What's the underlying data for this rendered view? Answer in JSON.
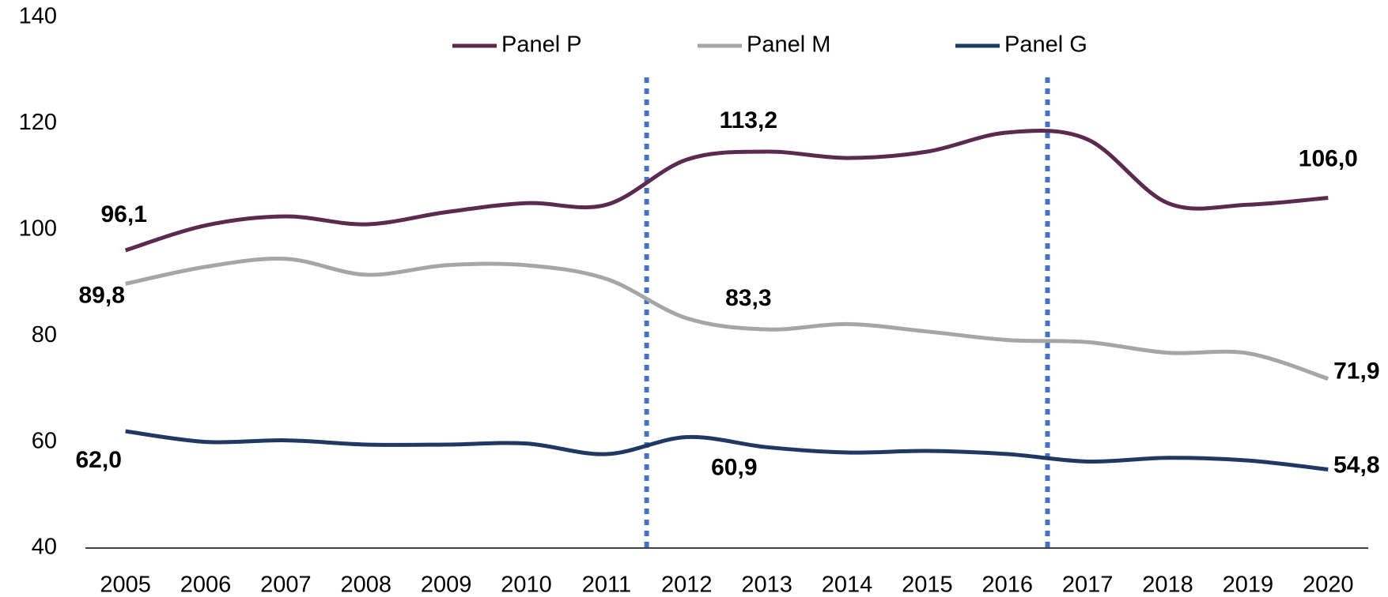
{
  "chart_data": {
    "type": "line",
    "categories": [
      "2005",
      "2006",
      "2007",
      "2008",
      "2009",
      "2010",
      "2011",
      "2012",
      "2013",
      "2014",
      "2015",
      "2016",
      "2017",
      "2018",
      "2019",
      "2020"
    ],
    "series": [
      {
        "name": "Panel P",
        "color": "#5c2a4f",
        "values": [
          96.1,
          100.8,
          102.5,
          101,
          103.3,
          105,
          104.7,
          113.2,
          114.7,
          113.5,
          114.7,
          118.3,
          117,
          105,
          104.7,
          106.0
        ],
        "value_labels": [
          "96,1",
          null,
          null,
          null,
          null,
          null,
          null,
          "113,2",
          null,
          null,
          null,
          null,
          null,
          null,
          null,
          "106,0"
        ]
      },
      {
        "name": "Panel M",
        "color": "#a6a6a6",
        "values": [
          89.8,
          93,
          94.5,
          91.5,
          93.3,
          93.3,
          90.7,
          83.3,
          81.2,
          82.2,
          80.8,
          79.2,
          78.8,
          76.8,
          76.7,
          71.9
        ],
        "value_labels": [
          "89,8",
          null,
          null,
          null,
          null,
          null,
          null,
          "83,3",
          null,
          null,
          null,
          null,
          null,
          null,
          null,
          "71,9"
        ]
      },
      {
        "name": "Panel G",
        "color": "#203864",
        "values": [
          62.0,
          60,
          60.3,
          59.5,
          59.5,
          59.7,
          57.7,
          60.9,
          59,
          58,
          58.3,
          57.7,
          56.3,
          57,
          56.5,
          54.8
        ],
        "value_labels": [
          "62,0",
          null,
          null,
          null,
          null,
          null,
          null,
          "60,9",
          null,
          null,
          null,
          null,
          null,
          null,
          null,
          "54,8"
        ]
      }
    ],
    "ylim": [
      40,
      140
    ],
    "yticks": [
      40,
      60,
      80,
      100,
      120,
      140
    ],
    "grid": false,
    "legend": "top"
  }
}
